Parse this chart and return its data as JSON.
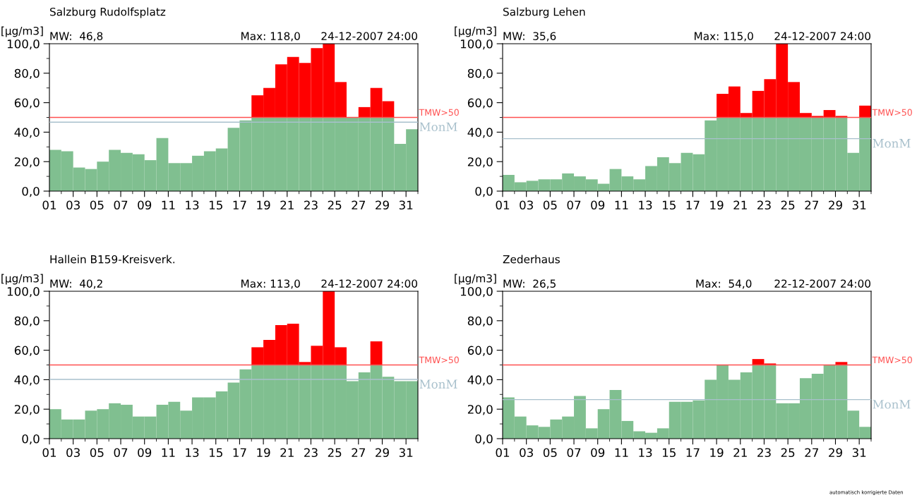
{
  "chart_data": [
    {
      "type": "bar",
      "stacked": true,
      "title": "Salzburg Rudolfsplatz",
      "ylabel": "[µg/m3]",
      "annotations": [
        "MW:  46,8",
        "Max: 118,0",
        "24-12-2007 24:00"
      ],
      "x": [
        1.5,
        2.5,
        3.5,
        4.5,
        5.5,
        6.5,
        7.5,
        8.5,
        9.5,
        10.5,
        11.5,
        12.5,
        13.5,
        14.5,
        15.5,
        16.5,
        17.5,
        18.5,
        19.5,
        20.5,
        21.5,
        22.5,
        23.5,
        24.5,
        25.5,
        26.5,
        27.5,
        28.5,
        29.5,
        30.5,
        31.5
      ],
      "series": [
        {
          "color": "#80bf90",
          "values": [
            28,
            27,
            16,
            15,
            20,
            28,
            26,
            25,
            21,
            36,
            19,
            19,
            24,
            27,
            29,
            43,
            48,
            50,
            50,
            50,
            50,
            50,
            50,
            50,
            50,
            50,
            50,
            50,
            50,
            32,
            42
          ]
        },
        {
          "color": "#ff0000",
          "values": [
            0,
            0,
            0,
            0,
            0,
            0,
            0,
            0,
            0,
            0,
            0,
            0,
            0,
            0,
            0,
            0,
            0,
            15,
            20,
            36,
            41,
            37,
            47,
            50,
            24,
            0,
            7,
            20,
            11,
            0,
            0
          ]
        }
      ],
      "ref_lines": [
        {
          "axis": "y",
          "value": 50,
          "label": "TMW>50",
          "color": "#ff5050"
        },
        {
          "axis": "y",
          "value": 46.8,
          "label": "MonM",
          "color": "#a8c0cc"
        }
      ],
      "xlim": [
        1,
        32
      ],
      "ylim": [
        0,
        100
      ],
      "xticks": [
        {
          "value": 1,
          "label": "01"
        },
        {
          "value": 2,
          "label": null
        },
        {
          "value": 3,
          "label": "03"
        },
        {
          "value": 4,
          "label": null
        },
        {
          "value": 5,
          "label": "05"
        },
        {
          "value": 6,
          "label": null
        },
        {
          "value": 7,
          "label": "07"
        },
        {
          "value": 8,
          "label": null
        },
        {
          "value": 9,
          "label": "09"
        },
        {
          "value": 10,
          "label": null
        },
        {
          "value": 11,
          "label": "11"
        },
        {
          "value": 12,
          "label": null
        },
        {
          "value": 13,
          "label": "13"
        },
        {
          "value": 14,
          "label": null
        },
        {
          "value": 15,
          "label": "15"
        },
        {
          "value": 16,
          "label": null
        },
        {
          "value": 17,
          "label": "17"
        },
        {
          "value": 18,
          "label": null
        },
        {
          "value": 19,
          "label": "19"
        },
        {
          "value": 20,
          "label": null
        },
        {
          "value": 21,
          "label": "21"
        },
        {
          "value": 22,
          "label": null
        },
        {
          "value": 23,
          "label": "23"
        },
        {
          "value": 24,
          "label": null
        },
        {
          "value": 25,
          "label": "25"
        },
        {
          "value": 26,
          "label": null
        },
        {
          "value": 27,
          "label": "27"
        },
        {
          "value": 28,
          "label": null
        },
        {
          "value": 29,
          "label": "29"
        },
        {
          "value": 30,
          "label": null
        },
        {
          "value": 31,
          "label": "31"
        },
        {
          "value": 32,
          "label": null
        }
      ],
      "yticks": [
        {
          "value": 0,
          "label": "0,0"
        },
        {
          "value": 10,
          "label": null
        },
        {
          "value": 20,
          "label": "20,0"
        },
        {
          "value": 30,
          "label": null
        },
        {
          "value": 40,
          "label": "40,0"
        },
        {
          "value": 50,
          "label": null
        },
        {
          "value": 60,
          "label": "60,0"
        },
        {
          "value": 70,
          "label": null
        },
        {
          "value": 80,
          "label": "80,0"
        },
        {
          "value": 90,
          "label": null
        },
        {
          "value": 100,
          "label": "100,0"
        }
      ]
    },
    {
      "type": "bar",
      "stacked": true,
      "title": "Salzburg Lehen",
      "ylabel": "[µg/m3]",
      "annotations": [
        "MW:  35,6",
        "Max: 115,0",
        "24-12-2007 24:00"
      ],
      "x": [
        1.5,
        2.5,
        3.5,
        4.5,
        5.5,
        6.5,
        7.5,
        8.5,
        9.5,
        10.5,
        11.5,
        12.5,
        13.5,
        14.5,
        15.5,
        16.5,
        17.5,
        18.5,
        19.5,
        20.5,
        21.5,
        22.5,
        23.5,
        24.5,
        25.5,
        26.5,
        27.5,
        28.5,
        29.5,
        30.5,
        31.5
      ],
      "series": [
        {
          "color": "#80bf90",
          "values": [
            11,
            6,
            7,
            8,
            8,
            12,
            10,
            8,
            5,
            15,
            10,
            8,
            17,
            23,
            19,
            26,
            25,
            48,
            50,
            50,
            50,
            50,
            50,
            50,
            50,
            50,
            50,
            50,
            50,
            26,
            50
          ]
        },
        {
          "color": "#ff0000",
          "values": [
            0,
            0,
            0,
            0,
            0,
            0,
            0,
            0,
            0,
            0,
            0,
            0,
            0,
            0,
            0,
            0,
            0,
            0,
            16,
            21,
            3,
            18,
            26,
            50,
            24,
            3,
            1,
            5,
            1,
            0,
            8
          ]
        }
      ],
      "ref_lines": [
        {
          "axis": "y",
          "value": 50,
          "label": "TMW>50",
          "color": "#ff5050"
        },
        {
          "axis": "y",
          "value": 35.6,
          "label": "MonM",
          "color": "#a8c0cc"
        }
      ],
      "xlim": [
        1,
        32
      ],
      "ylim": [
        0,
        100
      ],
      "xticks": [
        {
          "value": 1,
          "label": "01"
        },
        {
          "value": 2,
          "label": null
        },
        {
          "value": 3,
          "label": "03"
        },
        {
          "value": 4,
          "label": null
        },
        {
          "value": 5,
          "label": "05"
        },
        {
          "value": 6,
          "label": null
        },
        {
          "value": 7,
          "label": "07"
        },
        {
          "value": 8,
          "label": null
        },
        {
          "value": 9,
          "label": "09"
        },
        {
          "value": 10,
          "label": null
        },
        {
          "value": 11,
          "label": "11"
        },
        {
          "value": 12,
          "label": null
        },
        {
          "value": 13,
          "label": "13"
        },
        {
          "value": 14,
          "label": null
        },
        {
          "value": 15,
          "label": "15"
        },
        {
          "value": 16,
          "label": null
        },
        {
          "value": 17,
          "label": "17"
        },
        {
          "value": 18,
          "label": null
        },
        {
          "value": 19,
          "label": "19"
        },
        {
          "value": 20,
          "label": null
        },
        {
          "value": 21,
          "label": "21"
        },
        {
          "value": 22,
          "label": null
        },
        {
          "value": 23,
          "label": "23"
        },
        {
          "value": 24,
          "label": null
        },
        {
          "value": 25,
          "label": "25"
        },
        {
          "value": 26,
          "label": null
        },
        {
          "value": 27,
          "label": "27"
        },
        {
          "value": 28,
          "label": null
        },
        {
          "value": 29,
          "label": "29"
        },
        {
          "value": 30,
          "label": null
        },
        {
          "value": 31,
          "label": "31"
        },
        {
          "value": 32,
          "label": null
        }
      ],
      "yticks": [
        {
          "value": 0,
          "label": "0,0"
        },
        {
          "value": 10,
          "label": null
        },
        {
          "value": 20,
          "label": "20,0"
        },
        {
          "value": 30,
          "label": null
        },
        {
          "value": 40,
          "label": "40,0"
        },
        {
          "value": 50,
          "label": null
        },
        {
          "value": 60,
          "label": "60,0"
        },
        {
          "value": 70,
          "label": null
        },
        {
          "value": 80,
          "label": "80,0"
        },
        {
          "value": 90,
          "label": null
        },
        {
          "value": 100,
          "label": "100,0"
        }
      ]
    },
    {
      "type": "bar",
      "stacked": true,
      "title": "Hallein B159-Kreisverk.",
      "ylabel": "[µg/m3]",
      "annotations": [
        "MW:  40,2",
        "Max: 113,0",
        "24-12-2007 24:00"
      ],
      "x": [
        1.5,
        2.5,
        3.5,
        4.5,
        5.5,
        6.5,
        7.5,
        8.5,
        9.5,
        10.5,
        11.5,
        12.5,
        13.5,
        14.5,
        15.5,
        16.5,
        17.5,
        18.5,
        19.5,
        20.5,
        21.5,
        22.5,
        23.5,
        24.5,
        25.5,
        26.5,
        27.5,
        28.5,
        29.5,
        30.5,
        31.5
      ],
      "series": [
        {
          "color": "#80bf90",
          "values": [
            20,
            13,
            13,
            19,
            20,
            24,
            23,
            15,
            15,
            23,
            25,
            19,
            28,
            28,
            32,
            38,
            47,
            50,
            50,
            50,
            50,
            50,
            50,
            50,
            50,
            39,
            45,
            50,
            42,
            39,
            39
          ]
        },
        {
          "color": "#ff0000",
          "values": [
            0,
            0,
            0,
            0,
            0,
            0,
            0,
            0,
            0,
            0,
            0,
            0,
            0,
            0,
            0,
            0,
            0,
            12,
            17,
            27,
            28,
            2,
            13,
            50,
            12,
            0,
            0,
            16,
            0,
            0,
            0
          ]
        }
      ],
      "ref_lines": [
        {
          "axis": "y",
          "value": 50,
          "label": "TMW>50",
          "color": "#ff5050"
        },
        {
          "axis": "y",
          "value": 40.2,
          "label": "MonM",
          "color": "#a8c0cc"
        }
      ],
      "xlim": [
        1,
        32
      ],
      "ylim": [
        0,
        100
      ],
      "xticks": [
        {
          "value": 1,
          "label": "01"
        },
        {
          "value": 2,
          "label": null
        },
        {
          "value": 3,
          "label": "03"
        },
        {
          "value": 4,
          "label": null
        },
        {
          "value": 5,
          "label": "05"
        },
        {
          "value": 6,
          "label": null
        },
        {
          "value": 7,
          "label": "07"
        },
        {
          "value": 8,
          "label": null
        },
        {
          "value": 9,
          "label": "09"
        },
        {
          "value": 10,
          "label": null
        },
        {
          "value": 11,
          "label": "11"
        },
        {
          "value": 12,
          "label": null
        },
        {
          "value": 13,
          "label": "13"
        },
        {
          "value": 14,
          "label": null
        },
        {
          "value": 15,
          "label": "15"
        },
        {
          "value": 16,
          "label": null
        },
        {
          "value": 17,
          "label": "17"
        },
        {
          "value": 18,
          "label": null
        },
        {
          "value": 19,
          "label": "19"
        },
        {
          "value": 20,
          "label": null
        },
        {
          "value": 21,
          "label": "21"
        },
        {
          "value": 22,
          "label": null
        },
        {
          "value": 23,
          "label": "23"
        },
        {
          "value": 24,
          "label": null
        },
        {
          "value": 25,
          "label": "25"
        },
        {
          "value": 26,
          "label": null
        },
        {
          "value": 27,
          "label": "27"
        },
        {
          "value": 28,
          "label": null
        },
        {
          "value": 29,
          "label": "29"
        },
        {
          "value": 30,
          "label": null
        },
        {
          "value": 31,
          "label": "31"
        },
        {
          "value": 32,
          "label": null
        }
      ],
      "yticks": [
        {
          "value": 0,
          "label": "0,0"
        },
        {
          "value": 10,
          "label": null
        },
        {
          "value": 20,
          "label": "20,0"
        },
        {
          "value": 30,
          "label": null
        },
        {
          "value": 40,
          "label": "40,0"
        },
        {
          "value": 50,
          "label": null
        },
        {
          "value": 60,
          "label": "60,0"
        },
        {
          "value": 70,
          "label": null
        },
        {
          "value": 80,
          "label": "80,0"
        },
        {
          "value": 90,
          "label": null
        },
        {
          "value": 100,
          "label": "100,0"
        }
      ]
    },
    {
      "type": "bar",
      "stacked": true,
      "title": "Zederhaus",
      "ylabel": "[µg/m3]",
      "annotations": [
        "MW:  26,5",
        "Max:  54,0",
        "22-12-2007 24:00",
        "automatisch korrigierte Daten"
      ],
      "x": [
        1.5,
        2.5,
        3.5,
        4.5,
        5.5,
        6.5,
        7.5,
        8.5,
        9.5,
        10.5,
        11.5,
        12.5,
        13.5,
        14.5,
        15.5,
        16.5,
        17.5,
        18.5,
        19.5,
        20.5,
        21.5,
        22.5,
        23.5,
        24.5,
        25.5,
        26.5,
        27.5,
        28.5,
        29.5,
        30.5,
        31.5
      ],
      "series": [
        {
          "color": "#80bf90",
          "values": [
            28,
            15,
            9,
            8,
            13,
            15,
            29,
            7,
            20,
            33,
            12,
            5,
            4,
            7,
            25,
            25,
            26,
            40,
            50,
            40,
            45,
            50,
            50,
            24,
            24,
            41,
            44,
            50,
            50,
            19,
            8
          ]
        },
        {
          "color": "#ff0000",
          "values": [
            0,
            0,
            0,
            0,
            0,
            0,
            0,
            0,
            0,
            0,
            0,
            0,
            0,
            0,
            0,
            0,
            0,
            0,
            0,
            0,
            0,
            4,
            1,
            0,
            0,
            0,
            0,
            0,
            2,
            0,
            0
          ]
        }
      ],
      "ref_lines": [
        {
          "axis": "y",
          "value": 50,
          "label": "TMW>50",
          "color": "#ff5050"
        },
        {
          "axis": "y",
          "value": 26.5,
          "label": "MonM",
          "color": "#a8c0cc"
        }
      ],
      "xlim": [
        1,
        32
      ],
      "ylim": [
        0,
        100
      ],
      "xticks": [
        {
          "value": 1,
          "label": "01"
        },
        {
          "value": 2,
          "label": null
        },
        {
          "value": 3,
          "label": "03"
        },
        {
          "value": 4,
          "label": null
        },
        {
          "value": 5,
          "label": "05"
        },
        {
          "value": 6,
          "label": null
        },
        {
          "value": 7,
          "label": "07"
        },
        {
          "value": 8,
          "label": null
        },
        {
          "value": 9,
          "label": "09"
        },
        {
          "value": 10,
          "label": null
        },
        {
          "value": 11,
          "label": "11"
        },
        {
          "value": 12,
          "label": null
        },
        {
          "value": 13,
          "label": "13"
        },
        {
          "value": 14,
          "label": null
        },
        {
          "value": 15,
          "label": "15"
        },
        {
          "value": 16,
          "label": null
        },
        {
          "value": 17,
          "label": "17"
        },
        {
          "value": 18,
          "label": null
        },
        {
          "value": 19,
          "label": "19"
        },
        {
          "value": 20,
          "label": null
        },
        {
          "value": 21,
          "label": "21"
        },
        {
          "value": 22,
          "label": null
        },
        {
          "value": 23,
          "label": "23"
        },
        {
          "value": 24,
          "label": null
        },
        {
          "value": 25,
          "label": "25"
        },
        {
          "value": 26,
          "label": null
        },
        {
          "value": 27,
          "label": "27"
        },
        {
          "value": 28,
          "label": null
        },
        {
          "value": 29,
          "label": "29"
        },
        {
          "value": 30,
          "label": null
        },
        {
          "value": 31,
          "label": "31"
        },
        {
          "value": 32,
          "label": null
        }
      ],
      "yticks": [
        {
          "value": 0,
          "label": "0,0"
        },
        {
          "value": 10,
          "label": null
        },
        {
          "value": 20,
          "label": "20,0"
        },
        {
          "value": 30,
          "label": null
        },
        {
          "value": 40,
          "label": "40,0"
        },
        {
          "value": 50,
          "label": null
        },
        {
          "value": 60,
          "label": "60,0"
        },
        {
          "value": 70,
          "label": null
        },
        {
          "value": 80,
          "label": "80,0"
        },
        {
          "value": 90,
          "label": null
        },
        {
          "value": 100,
          "label": "100,0"
        }
      ]
    }
  ]
}
